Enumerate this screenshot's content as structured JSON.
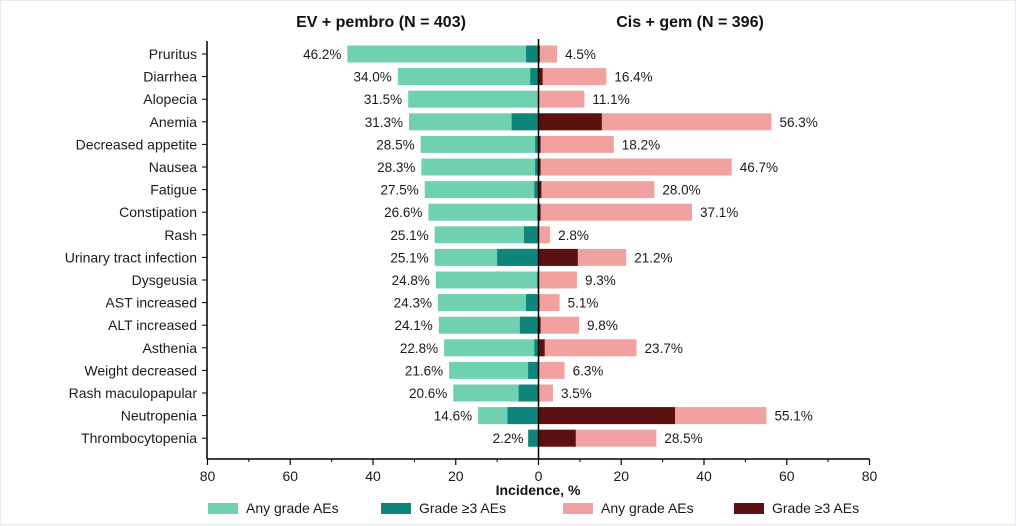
{
  "chart_data": {
    "type": "bar",
    "orientation": "horizontal-diverging",
    "left_title": "EV + pembro (N = 403)",
    "right_title": "Cis + gem (N = 396)",
    "xlabel": "Incidence, %",
    "xlim": [
      -80,
      80
    ],
    "xticks": [
      "80",
      "60",
      "40",
      "20",
      "0",
      "20",
      "40",
      "60",
      "80"
    ],
    "categories": [
      "Pruritus",
      "Diarrhea",
      "Alopecia",
      "Anemia",
      "Decreased appetite",
      "Nausea",
      "Fatigue",
      "Constipation",
      "Rash",
      "Urinary tract infection",
      "Dysgeusia",
      "AST increased",
      "ALT increased",
      "Asthenia",
      "Weight decreased",
      "Rash maculopapular",
      "Neutropenia",
      "Thrombocytopenia"
    ],
    "series": [
      {
        "name": "Any grade AEs",
        "arm": "left",
        "color": "#6fd1b0",
        "values": [
          46.2,
          34.0,
          31.5,
          31.3,
          28.5,
          28.3,
          27.5,
          26.6,
          25.1,
          25.1,
          24.8,
          24.3,
          24.1,
          22.8,
          21.6,
          20.6,
          14.6,
          2.2
        ],
        "labels": [
          "46.2%",
          "34.0%",
          "31.5%",
          "31.3%",
          "28.5%",
          "28.3%",
          "27.5%",
          "26.6%",
          "25.1%",
          "25.1%",
          "24.8%",
          "24.3%",
          "24.1%",
          "22.8%",
          "21.6%",
          "20.6%",
          "14.6%",
          "2.2%"
        ]
      },
      {
        "name": "Grade ≥3 AEs",
        "arm": "left",
        "color": "#0e857a",
        "values": [
          3.0,
          2.0,
          0.0,
          6.5,
          0.8,
          0.8,
          1.0,
          0.3,
          3.5,
          10.0,
          0.3,
          3.0,
          4.5,
          1.0,
          2.5,
          4.8,
          7.5,
          2.5
        ]
      },
      {
        "name": "Any grade AEs",
        "arm": "right",
        "color": "#f2a1a1",
        "values": [
          4.5,
          16.4,
          11.1,
          56.3,
          18.2,
          46.7,
          28.0,
          37.1,
          2.8,
          21.2,
          9.3,
          5.1,
          9.8,
          23.7,
          6.3,
          3.5,
          55.1,
          28.5
        ],
        "labels": [
          "4.5%",
          "16.4%",
          "11.1%",
          "56.3%",
          "18.2%",
          "46.7%",
          "28.0%",
          "37.1%",
          "2.8%",
          "21.2%",
          "9.3%",
          "5.1%",
          "9.8%",
          "23.7%",
          "6.3%",
          "3.5%",
          "55.1%",
          "28.5%"
        ]
      },
      {
        "name": "Grade ≥3 AEs",
        "arm": "right",
        "color": "#5c1111",
        "values": [
          0.3,
          1.0,
          0.0,
          15.3,
          0.5,
          0.5,
          0.7,
          0.5,
          0.0,
          9.5,
          0.0,
          0.2,
          0.5,
          1.5,
          0.0,
          0.0,
          33.0,
          9.0
        ]
      }
    ],
    "legend": {
      "placement": "bottom",
      "items": [
        {
          "label": "Any grade AEs",
          "color": "#6fd1b0"
        },
        {
          "label": "Grade ≥3 AEs",
          "color": "#0e857a"
        },
        {
          "label": "Any grade AEs",
          "color": "#f2a1a1"
        },
        {
          "label": "Grade ≥3 AEs",
          "color": "#5c1111"
        }
      ]
    },
    "grid": false
  }
}
